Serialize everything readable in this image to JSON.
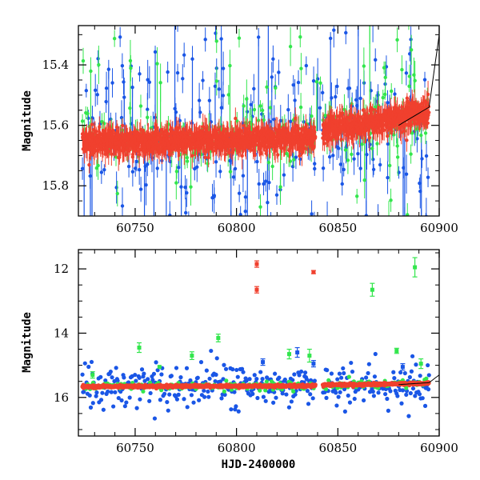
{
  "chart_data": [
    {
      "type": "scatter",
      "panel": "top",
      "title": "",
      "xlabel": "",
      "ylabel": "Magnitude",
      "xlim": [
        60722,
        60900
      ],
      "ylim": [
        15.27,
        15.9
      ],
      "y_inverted": true,
      "xticks": [
        60750,
        60800,
        60850,
        60900
      ],
      "yticks": [
        15.4,
        15.6,
        15.8
      ],
      "ytick_labels": [
        "15.4",
        "15.6",
        "15.8"
      ],
      "error_bars": true,
      "grid": false,
      "legend": "none",
      "series": [
        {
          "color": "#1a56e6",
          "cadence_days": 1.0,
          "baseline": [
            [
              60722,
              15.66
            ],
            [
              60838,
              15.64
            ],
            [
              60839,
              15.62
            ],
            [
              60895,
              15.57
            ]
          ],
          "spread_mag": 0.18,
          "err_mag": 0.03
        },
        {
          "color": "#33e64d",
          "cadence_days": 0.9,
          "baseline": [
            [
              60722,
              15.65
            ],
            [
              60838,
              15.64
            ],
            [
              60839,
              15.62
            ],
            [
              60895,
              15.56
            ]
          ],
          "spread_mag": 0.09,
          "err_mag": 0.028
        },
        {
          "color": "#f0402e",
          "cadence_days": 0.12,
          "baseline": [
            [
              60722,
              15.66
            ],
            [
              60838,
              15.64
            ],
            [
              60839,
              15.62
            ],
            [
              60895,
              15.56
            ]
          ],
          "spread_mag": 0.035,
          "err_mag": 0.025
        }
      ]
    },
    {
      "type": "scatter",
      "panel": "bottom",
      "title": "",
      "xlabel": "HJD-2400000",
      "ylabel": "Magnitude",
      "xlim": [
        60722,
        60900
      ],
      "ylim": [
        11.4,
        17.2
      ],
      "y_inverted": true,
      "xticks": [
        60750,
        60800,
        60850,
        60900
      ],
      "yticks": [
        12,
        14,
        16
      ],
      "ytick_labels": [
        "12",
        "14",
        "16"
      ],
      "error_bars": true,
      "grid": false,
      "legend": "none",
      "outliers": [
        {
          "series": "red",
          "x": 60810,
          "y": 11.85,
          "err": 0.1
        },
        {
          "series": "red",
          "x": 60810,
          "y": 12.65,
          "err": 0.1
        },
        {
          "series": "red",
          "x": 60838,
          "y": 12.1,
          "err": 0.05
        },
        {
          "series": "green",
          "x": 60888,
          "y": 11.95,
          "err": 0.3
        },
        {
          "series": "green",
          "x": 60867,
          "y": 12.65,
          "err": 0.2
        },
        {
          "series": "green",
          "x": 60752,
          "y": 14.45,
          "err": 0.15
        },
        {
          "series": "green",
          "x": 60778,
          "y": 14.7,
          "err": 0.12
        },
        {
          "series": "green",
          "x": 60791,
          "y": 14.15,
          "err": 0.12
        },
        {
          "series": "green",
          "x": 60826,
          "y": 14.65,
          "err": 0.15
        },
        {
          "series": "green",
          "x": 60836,
          "y": 14.7,
          "err": 0.2
        },
        {
          "series": "green",
          "x": 60879,
          "y": 14.55,
          "err": 0.08
        },
        {
          "series": "green",
          "x": 60891,
          "y": 14.95,
          "err": 0.15
        },
        {
          "series": "green",
          "x": 60762,
          "y": 15.05,
          "err": 0.0
        },
        {
          "series": "green",
          "x": 60729,
          "y": 15.3,
          "err": 0.1
        },
        {
          "series": "blue",
          "x": 60813,
          "y": 14.9,
          "err": 0.1
        },
        {
          "series": "blue",
          "x": 60830,
          "y": 14.6,
          "err": 0.15
        },
        {
          "series": "blue",
          "x": 60838,
          "y": 14.95,
          "err": 0.1
        },
        {
          "series": "blue",
          "x": 60882,
          "y": 15.05,
          "err": 0.1
        }
      ],
      "series": [
        {
          "color": "#1a56e6",
          "cadence_days": 0.45,
          "baseline": [
            [
              60722,
              15.66
            ],
            [
              60838,
              15.64
            ],
            [
              60839,
              15.62
            ],
            [
              60895,
              15.57
            ]
          ],
          "spread_mag": 0.55,
          "err_mag": 0.03
        },
        {
          "color": "#33e64d",
          "cadence_days": 0.9,
          "baseline": [
            [
              60722,
              15.65
            ],
            [
              60838,
              15.64
            ],
            [
              60839,
              15.62
            ],
            [
              60895,
              15.56
            ]
          ],
          "spread_mag": 0.12,
          "err_mag": 0.03
        },
        {
          "color": "#f0402e",
          "cadence_days": 0.12,
          "baseline": [
            [
              60722,
              15.66
            ],
            [
              60838,
              15.64
            ],
            [
              60839,
              15.62
            ],
            [
              60895,
              15.56
            ]
          ],
          "spread_mag": 0.03,
          "err_mag": 0.02
        }
      ]
    }
  ]
}
